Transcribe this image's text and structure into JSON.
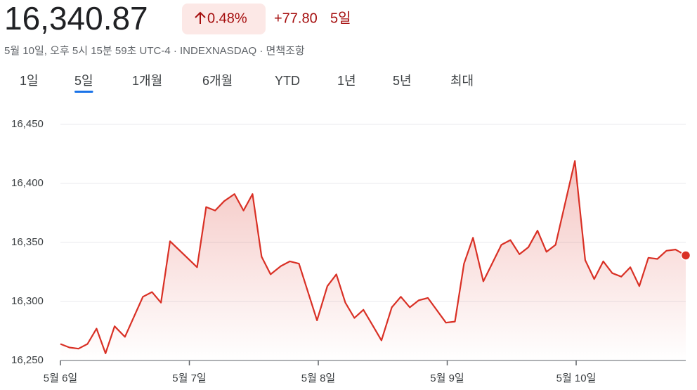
{
  "header": {
    "price": "16,340.87",
    "change_percent": "0.48%",
    "change": "+77.80",
    "period": "5일",
    "subtitle": "5월 10일, 오후 5시 15분 59초 UTC-4 · INDEXNASDAQ · 면책조항"
  },
  "tabs": {
    "items": [
      "1일",
      "5일",
      "1개월",
      "6개월",
      "YTD",
      "1년",
      "5년",
      "최대"
    ],
    "selected": 1
  },
  "chart_data": {
    "type": "line",
    "color": "#d93025",
    "grid": true,
    "x": [
      0,
      0.07,
      0.14,
      0.21,
      0.28,
      0.35,
      0.42,
      0.5,
      0.64,
      0.71,
      0.78,
      0.85,
      1.06,
      1.13,
      1.2,
      1.27,
      1.35,
      1.42,
      1.49,
      1.56,
      1.63,
      1.71,
      1.78,
      1.85,
      1.99,
      2.07,
      2.14,
      2.21,
      2.28,
      2.35,
      2.42,
      2.49,
      2.57,
      2.64,
      2.71,
      2.78,
      2.85,
      2.99,
      3.06,
      3.13,
      3.2,
      3.28,
      3.42,
      3.49,
      3.56,
      3.63,
      3.7,
      3.77,
      3.84,
      3.99,
      4.07,
      4.14,
      4.21,
      4.28,
      4.35,
      4.42,
      4.49,
      4.56,
      4.63,
      4.7,
      4.77,
      4.85
    ],
    "values": [
      16264,
      16261,
      16260,
      16264,
      16277,
      16256,
      16279,
      16270,
      16304,
      16308,
      16299,
      16351,
      16329,
      16380,
      16377,
      16385,
      16391,
      16377,
      16391,
      16338,
      16323,
      16330,
      16334,
      16332,
      16284,
      16313,
      16323,
      16299,
      16286,
      16293,
      16280,
      16267,
      16295,
      16304,
      16295,
      16301,
      16303,
      16282,
      16283,
      16332,
      16354,
      16317,
      16348,
      16352,
      16340,
      16346,
      16360,
      16342,
      16348,
      16419,
      16335,
      16319,
      16334,
      16324,
      16321,
      16329,
      16313,
      16337,
      16336,
      16343,
      16344,
      16339
    ],
    "xlim": [
      0,
      4.85
    ],
    "xticks": [
      {
        "value": 0,
        "label": "5월 6일"
      },
      {
        "value": 1,
        "label": "5월 7일"
      },
      {
        "value": 2,
        "label": "5월 8일"
      },
      {
        "value": 3,
        "label": "5월 9일"
      },
      {
        "value": 4,
        "label": "5월 10일"
      }
    ],
    "ylim": [
      16250,
      16450
    ],
    "yticks": [
      {
        "value": 16250,
        "label": "16,250"
      },
      {
        "value": 16300,
        "label": "16,300"
      },
      {
        "value": 16350,
        "label": "16,350"
      },
      {
        "value": 16400,
        "label": "16,400"
      },
      {
        "value": 16450,
        "label": "16,450"
      }
    ]
  }
}
